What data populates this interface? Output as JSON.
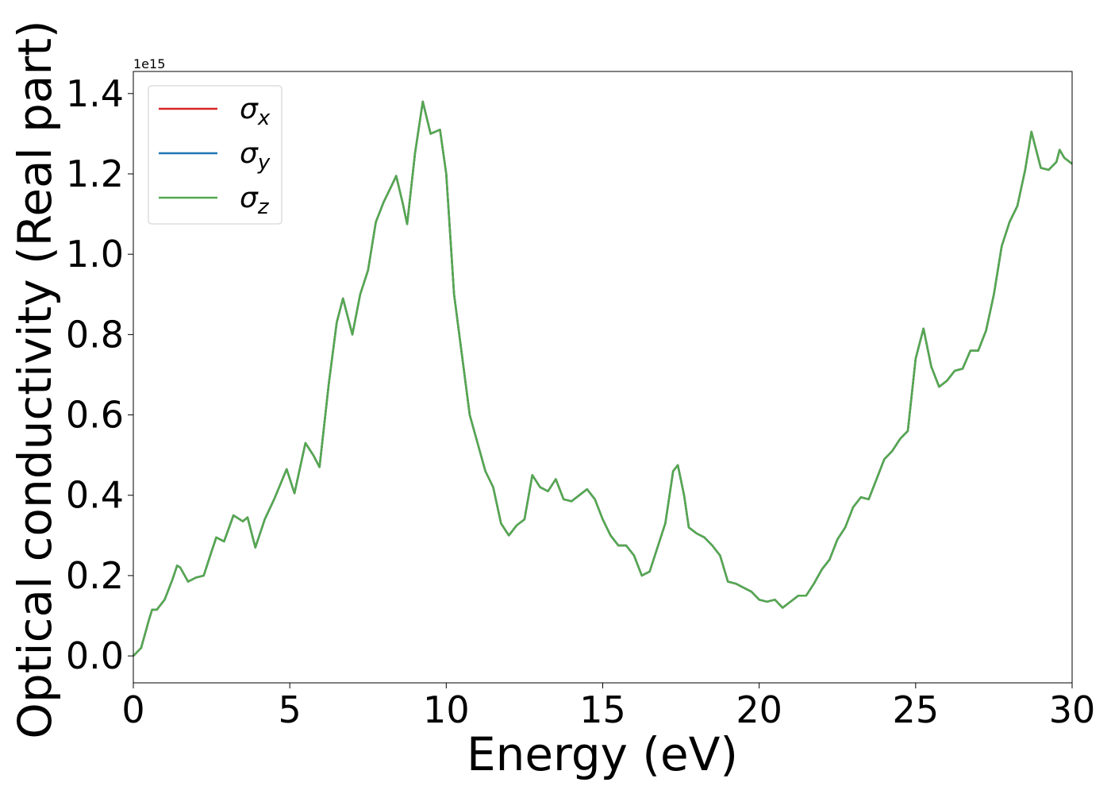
{
  "chart_data": {
    "type": "line",
    "xlabel": "Energy (eV)",
    "ylabel": "Optical conductivity (Real part)",
    "y_offset_label": "1e15",
    "x": [
      0,
      0.25,
      0.5,
      0.6,
      0.75,
      1.0,
      1.25,
      1.4,
      1.5,
      1.75,
      2.0,
      2.25,
      2.5,
      2.65,
      2.9,
      3.2,
      3.5,
      3.65,
      3.9,
      4.2,
      4.5,
      4.9,
      5.15,
      5.5,
      5.75,
      5.95,
      6.25,
      6.5,
      6.7,
      7.0,
      7.25,
      7.5,
      7.75,
      8.0,
      8.25,
      8.4,
      8.6,
      8.75,
      9.0,
      9.25,
      9.5,
      9.8,
      10.0,
      10.25,
      10.5,
      10.75,
      11.0,
      11.25,
      11.5,
      11.75,
      12.0,
      12.25,
      12.5,
      12.75,
      13.0,
      13.25,
      13.5,
      13.75,
      14.0,
      14.25,
      14.5,
      14.75,
      15.0,
      15.25,
      15.5,
      15.75,
      16.0,
      16.25,
      16.5,
      16.75,
      17.0,
      17.25,
      17.4,
      17.6,
      17.75,
      18.0,
      18.25,
      18.5,
      18.75,
      19.0,
      19.25,
      19.5,
      19.75,
      20.0,
      20.25,
      20.5,
      20.75,
      21.0,
      21.25,
      21.5,
      21.75,
      22.0,
      22.25,
      22.5,
      22.75,
      23.0,
      23.25,
      23.5,
      23.75,
      24.0,
      24.25,
      24.5,
      24.75,
      25.0,
      25.25,
      25.5,
      25.75,
      26.0,
      26.25,
      26.5,
      26.75,
      27.0,
      27.25,
      27.5,
      27.75,
      28.0,
      28.25,
      28.5,
      28.7,
      29.0,
      29.25,
      29.5,
      29.6,
      29.75,
      30.0
    ],
    "series": [
      {
        "name": "σx",
        "color": "#d62728",
        "values": [
          0,
          0.02,
          0.09,
          0.115,
          0.115,
          0.14,
          0.19,
          0.225,
          0.22,
          0.185,
          0.195,
          0.2,
          0.26,
          0.295,
          0.285,
          0.35,
          0.335,
          0.345,
          0.27,
          0.34,
          0.39,
          0.465,
          0.405,
          0.53,
          0.5,
          0.47,
          0.68,
          0.83,
          0.89,
          0.8,
          0.9,
          0.96,
          1.08,
          1.13,
          1.17,
          1.195,
          1.13,
          1.075,
          1.25,
          1.38,
          1.3,
          1.31,
          1.2,
          0.9,
          0.75,
          0.6,
          0.53,
          0.46,
          0.42,
          0.33,
          0.3,
          0.325,
          0.34,
          0.45,
          0.42,
          0.41,
          0.44,
          0.39,
          0.385,
          0.4,
          0.415,
          0.39,
          0.34,
          0.3,
          0.275,
          0.275,
          0.25,
          0.2,
          0.21,
          0.27,
          0.33,
          0.46,
          0.475,
          0.4,
          0.32,
          0.305,
          0.295,
          0.275,
          0.25,
          0.185,
          0.18,
          0.17,
          0.16,
          0.14,
          0.135,
          0.14,
          0.12,
          0.135,
          0.15,
          0.15,
          0.18,
          0.215,
          0.24,
          0.29,
          0.32,
          0.37,
          0.395,
          0.39,
          0.44,
          0.49,
          0.51,
          0.54,
          0.56,
          0.74,
          0.815,
          0.72,
          0.67,
          0.685,
          0.71,
          0.715,
          0.76,
          0.76,
          0.81,
          0.9,
          1.02,
          1.08,
          1.12,
          1.21,
          1.305,
          1.215,
          1.21,
          1.23,
          1.26,
          1.24,
          1.225
        ]
      },
      {
        "name": "σy",
        "color": "#1f77b4",
        "values": [
          0,
          0.02,
          0.09,
          0.115,
          0.115,
          0.14,
          0.19,
          0.225,
          0.22,
          0.185,
          0.195,
          0.2,
          0.26,
          0.295,
          0.285,
          0.35,
          0.335,
          0.345,
          0.27,
          0.34,
          0.39,
          0.465,
          0.405,
          0.53,
          0.5,
          0.47,
          0.68,
          0.83,
          0.89,
          0.8,
          0.9,
          0.96,
          1.08,
          1.13,
          1.17,
          1.195,
          1.13,
          1.075,
          1.25,
          1.38,
          1.3,
          1.31,
          1.2,
          0.9,
          0.75,
          0.6,
          0.53,
          0.46,
          0.42,
          0.33,
          0.3,
          0.325,
          0.34,
          0.45,
          0.42,
          0.41,
          0.44,
          0.39,
          0.385,
          0.4,
          0.415,
          0.39,
          0.34,
          0.3,
          0.275,
          0.275,
          0.25,
          0.2,
          0.21,
          0.27,
          0.33,
          0.46,
          0.475,
          0.4,
          0.32,
          0.305,
          0.295,
          0.275,
          0.25,
          0.185,
          0.18,
          0.17,
          0.16,
          0.14,
          0.135,
          0.14,
          0.12,
          0.135,
          0.15,
          0.15,
          0.18,
          0.215,
          0.24,
          0.29,
          0.32,
          0.37,
          0.395,
          0.39,
          0.44,
          0.49,
          0.51,
          0.54,
          0.56,
          0.74,
          0.815,
          0.72,
          0.67,
          0.685,
          0.71,
          0.715,
          0.76,
          0.76,
          0.81,
          0.9,
          1.02,
          1.08,
          1.12,
          1.21,
          1.305,
          1.215,
          1.21,
          1.23,
          1.26,
          1.24,
          1.225
        ]
      },
      {
        "name": "σz",
        "color": "#55a84f",
        "values": [
          0,
          0.02,
          0.09,
          0.115,
          0.115,
          0.14,
          0.19,
          0.225,
          0.22,
          0.185,
          0.195,
          0.2,
          0.26,
          0.295,
          0.285,
          0.35,
          0.335,
          0.345,
          0.27,
          0.34,
          0.39,
          0.465,
          0.405,
          0.53,
          0.5,
          0.47,
          0.68,
          0.83,
          0.89,
          0.8,
          0.9,
          0.96,
          1.08,
          1.13,
          1.17,
          1.195,
          1.13,
          1.075,
          1.25,
          1.38,
          1.3,
          1.31,
          1.2,
          0.9,
          0.75,
          0.6,
          0.53,
          0.46,
          0.42,
          0.33,
          0.3,
          0.325,
          0.34,
          0.45,
          0.42,
          0.41,
          0.44,
          0.39,
          0.385,
          0.4,
          0.415,
          0.39,
          0.34,
          0.3,
          0.275,
          0.275,
          0.25,
          0.2,
          0.21,
          0.27,
          0.33,
          0.46,
          0.475,
          0.4,
          0.32,
          0.305,
          0.295,
          0.275,
          0.25,
          0.185,
          0.18,
          0.17,
          0.16,
          0.14,
          0.135,
          0.14,
          0.12,
          0.135,
          0.15,
          0.15,
          0.18,
          0.215,
          0.24,
          0.29,
          0.32,
          0.37,
          0.395,
          0.39,
          0.44,
          0.49,
          0.51,
          0.54,
          0.56,
          0.74,
          0.815,
          0.72,
          0.67,
          0.685,
          0.71,
          0.715,
          0.76,
          0.76,
          0.81,
          0.9,
          1.02,
          1.08,
          1.12,
          1.21,
          1.305,
          1.215,
          1.21,
          1.23,
          1.26,
          1.24,
          1.225
        ]
      }
    ],
    "xlim": [
      0,
      30
    ],
    "xticks": [
      0,
      5,
      10,
      15,
      20,
      25,
      30
    ],
    "ylim": [
      -0.067,
      1.455
    ],
    "yticks": [
      {
        "value": 0,
        "label": "0.0"
      },
      0.2,
      0.4,
      0.6,
      0.8,
      {
        "value": 1,
        "label": "1.0"
      },
      1.2,
      1.4
    ],
    "legend": "upper left",
    "grid": false
  }
}
